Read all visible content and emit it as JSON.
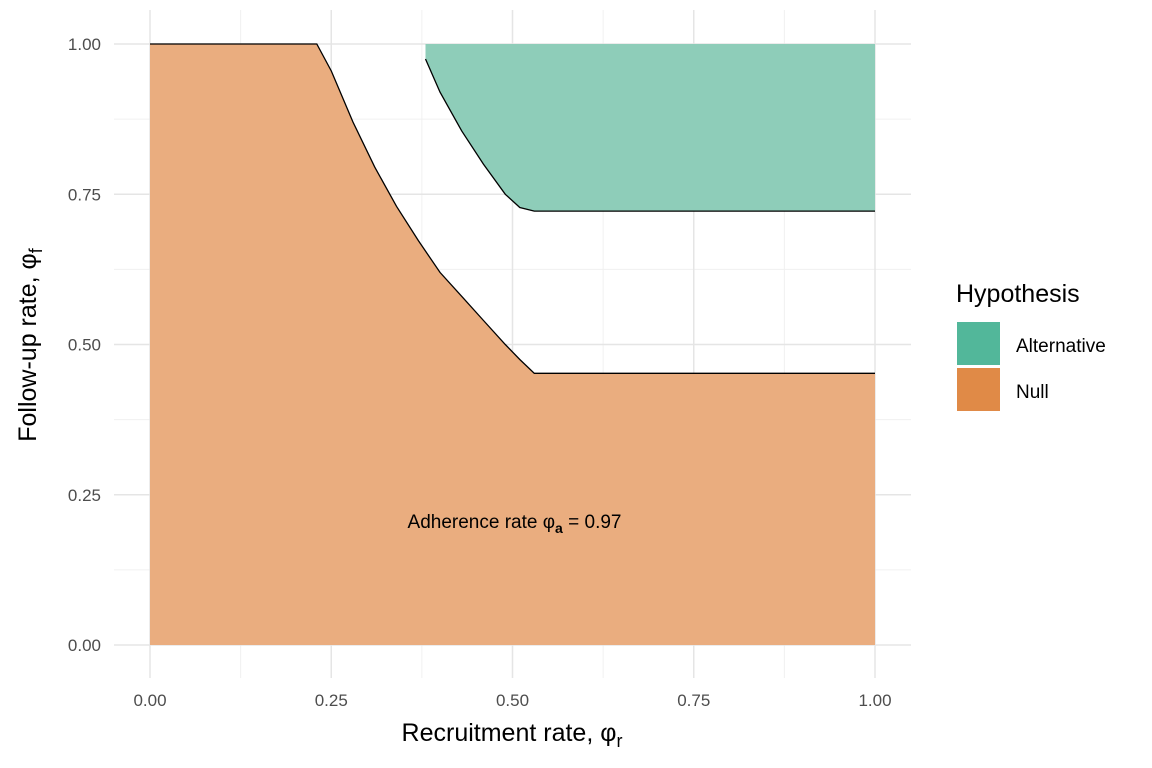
{
  "chart_data": {
    "type": "area",
    "xlabel": "Recruitment rate, ",
    "xlabel_symbol": "φ",
    "xlabel_sub": "r",
    "ylabel": "Follow-up rate, ",
    "ylabel_symbol": "φ",
    "ylabel_sub": "f",
    "xlim": [
      0,
      1
    ],
    "ylim": [
      0,
      1
    ],
    "x_ticks": [
      0,
      0.25,
      0.5,
      0.75,
      1
    ],
    "x_tick_labels": [
      "0.00",
      "0.25",
      "0.50",
      "0.75",
      "1.00"
    ],
    "y_ticks": [
      0,
      0.25,
      0.5,
      0.75,
      1
    ],
    "y_tick_labels": [
      "0.00",
      "0.25",
      "0.50",
      "0.75",
      "1.00"
    ],
    "grid": true,
    "legend": {
      "title": "Hypothesis",
      "position": "right",
      "entries": [
        {
          "label": "Alternative",
          "color": "#52b79a"
        },
        {
          "label": "Null",
          "color": "#e08a47"
        }
      ]
    },
    "annotation": {
      "prefix": "Adherence rate ",
      "symbol": "φ",
      "sub": "a",
      "suffix": " = 0.97",
      "x": 0.5,
      "y": 0.2
    },
    "series": [
      {
        "name": "Null",
        "color": "#eaad7f",
        "x": [
          0.0,
          0.23,
          0.25,
          0.28,
          0.31,
          0.34,
          0.37,
          0.4,
          0.43,
          0.46,
          0.49,
          0.51,
          0.53,
          1.0
        ],
        "y": [
          1.0,
          1.0,
          0.955,
          0.87,
          0.795,
          0.73,
          0.673,
          0.62,
          0.58,
          0.54,
          0.5,
          0.475,
          0.452,
          0.452
        ]
      },
      {
        "name": "Alternative",
        "color": "#8ecdb9",
        "x": [
          0.38,
          0.4,
          0.43,
          0.46,
          0.49,
          0.51,
          0.53,
          1.0
        ],
        "y_upper": [
          1.0,
          1.0,
          1.0,
          1.0,
          1.0,
          1.0,
          1.0,
          1.0
        ],
        "y_lower": [
          0.975,
          0.92,
          0.855,
          0.8,
          0.75,
          0.728,
          0.722,
          0.722
        ]
      }
    ]
  }
}
